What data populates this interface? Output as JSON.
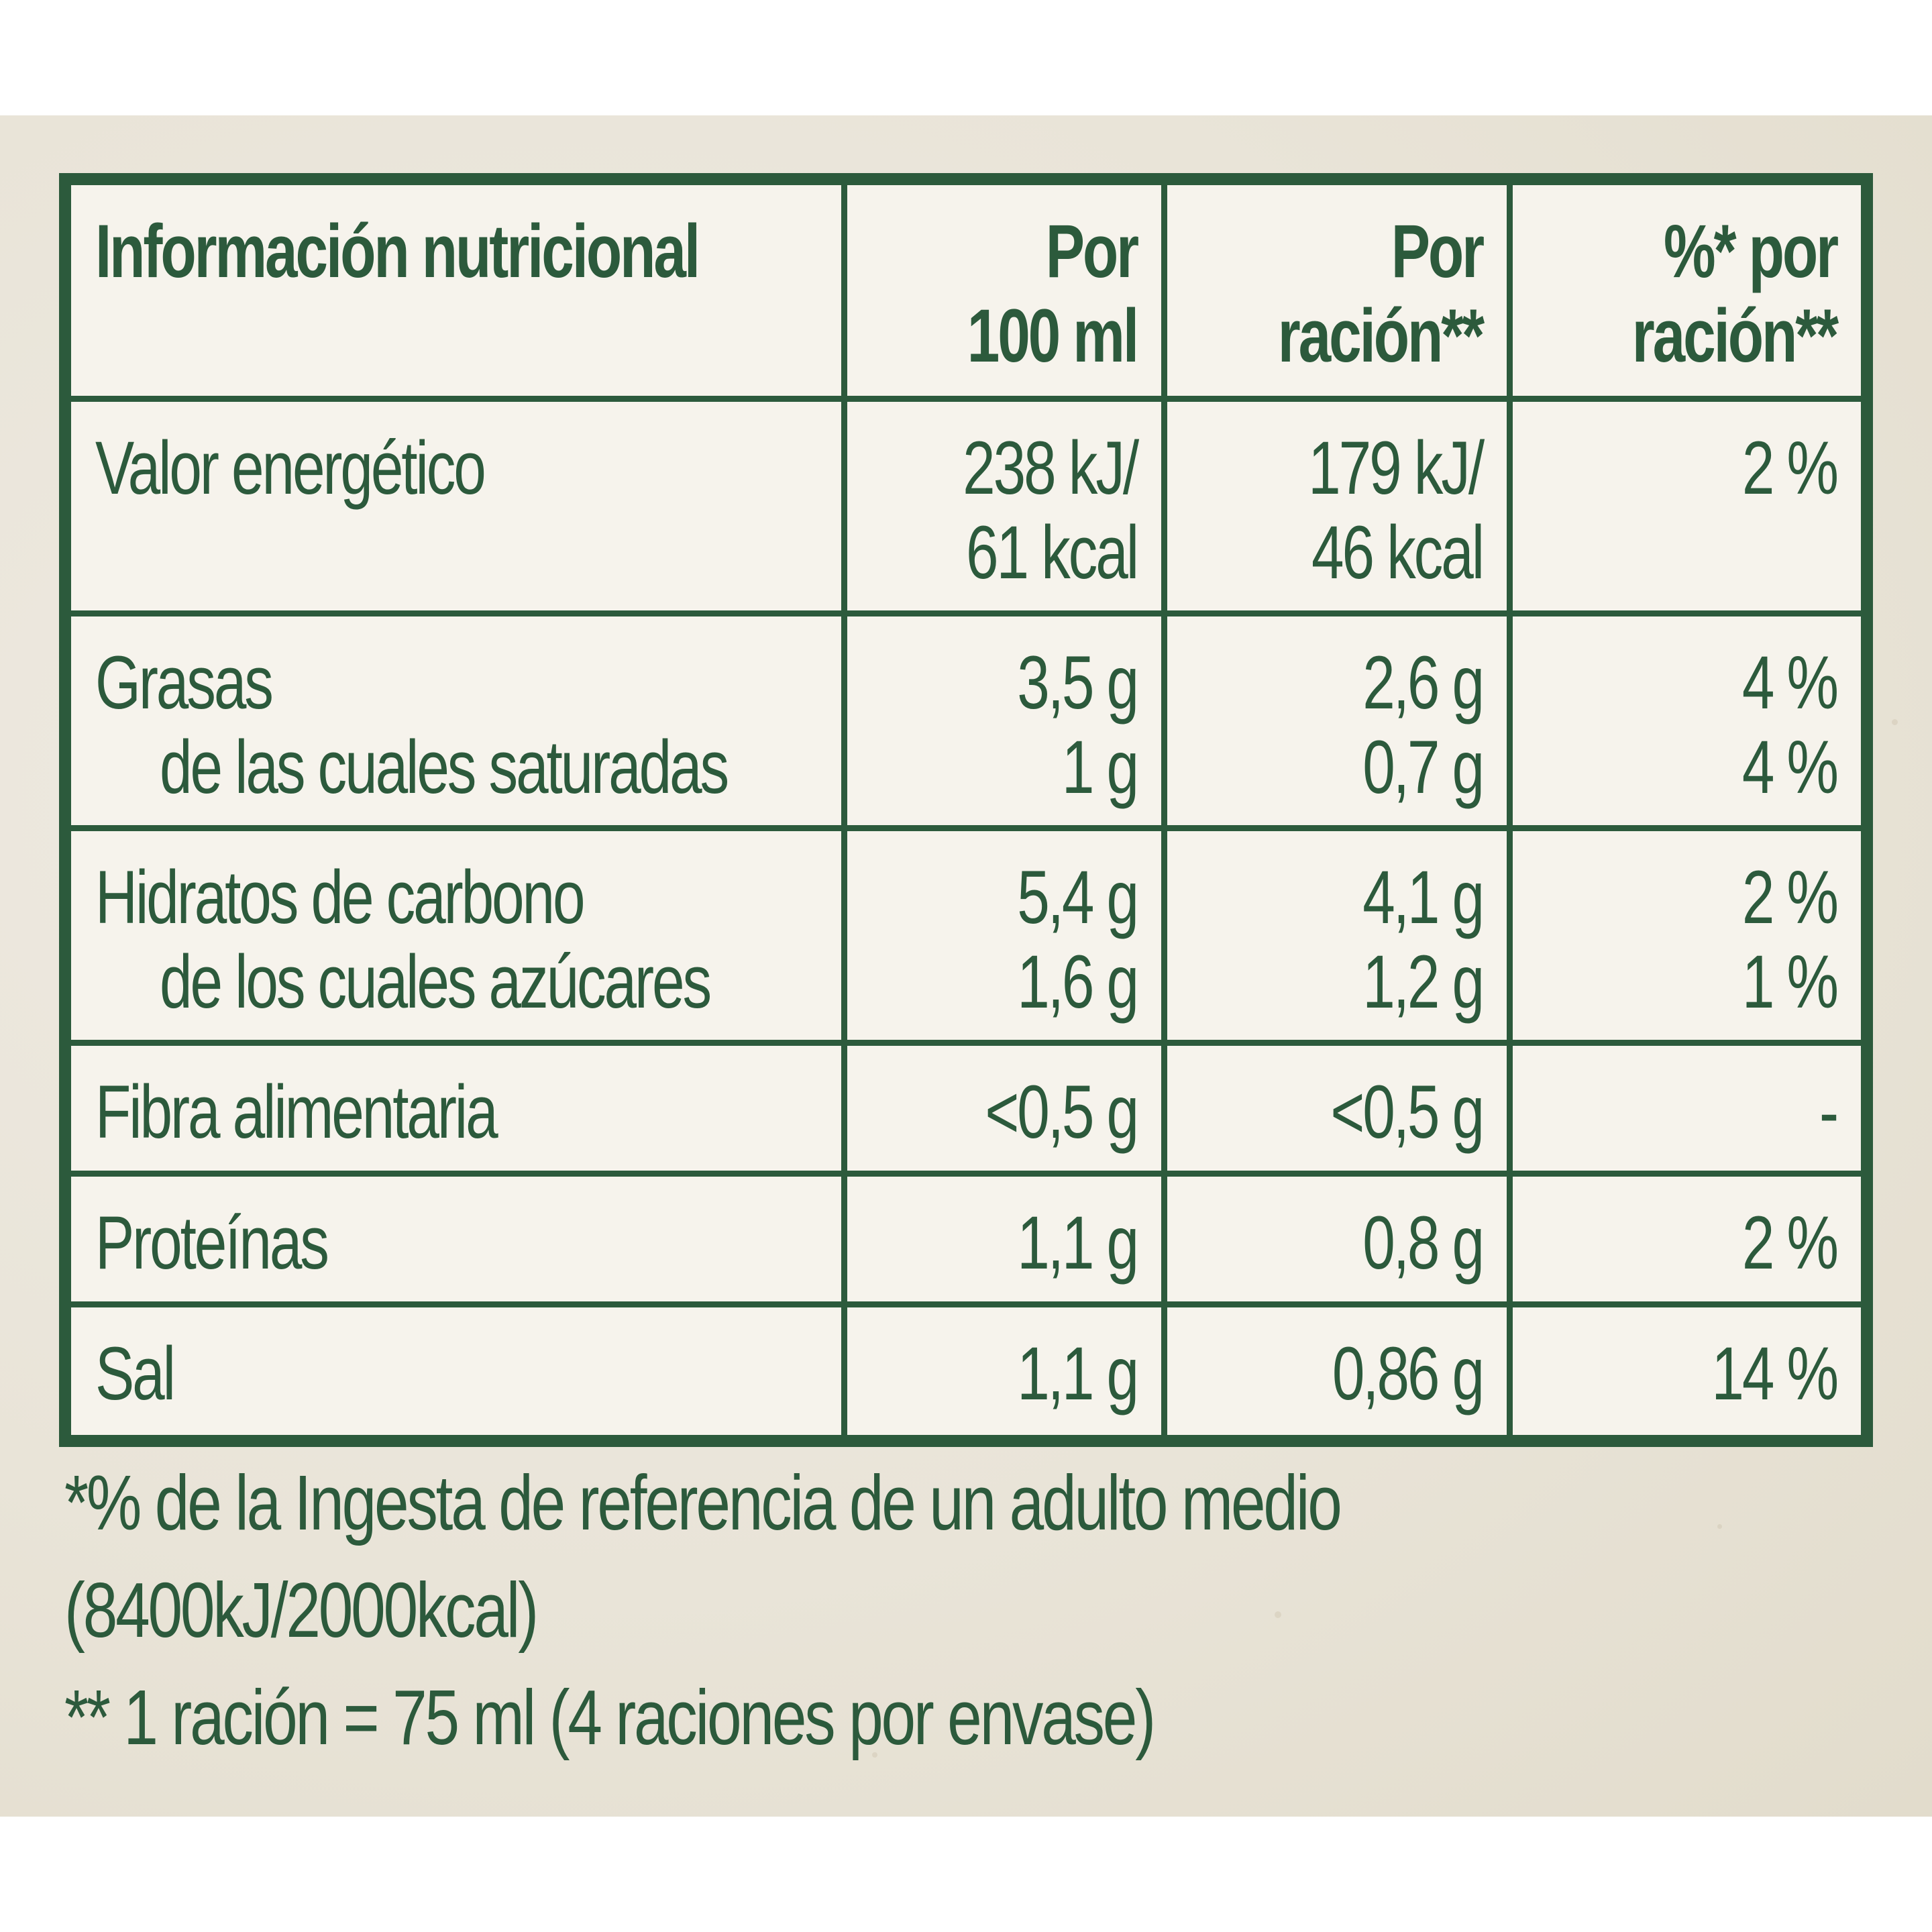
{
  "table": {
    "header": {
      "col1": "Información nutricional",
      "col2_l1": "Por",
      "col2_l2": "100 ml",
      "col3_l1": "Por",
      "col3_l2": "ración**",
      "col4_l1": "%* por",
      "col4_l2": "ración**"
    },
    "rows": [
      {
        "label": "Valor energético",
        "per100_l1": "238 kJ/",
        "per100_l2": "61 kcal",
        "perserv_l1": "179 kJ/",
        "perserv_l2": "46 kcal",
        "pct": "2 %"
      },
      {
        "label": "Grasas",
        "sublabel": "de las cuales saturadas",
        "per100": "3,5 g",
        "per100_sub": "1 g",
        "perserv": "2,6 g",
        "perserv_sub": "0,7 g",
        "pct": "4 %",
        "pct_sub": "4 %"
      },
      {
        "label": "Hidratos de carbono",
        "sublabel": "de los cuales azúcares",
        "per100": "5,4 g",
        "per100_sub": "1,6 g",
        "perserv": "4,1 g",
        "perserv_sub": "1,2 g",
        "pct": "2 %",
        "pct_sub": "1 %"
      },
      {
        "label": "Fibra alimentaria",
        "per100": "<0,5 g",
        "perserv": "<0,5 g",
        "pct": "-"
      },
      {
        "label": "Proteínas",
        "per100": "1,1 g",
        "perserv": "0,8 g",
        "pct": "2 %"
      },
      {
        "label": "Sal",
        "per100": "1,1 g",
        "perserv": "0,86 g",
        "pct": "14 %"
      }
    ]
  },
  "footnotes": {
    "line1": "*% de la Ingesta de referencia de un adulto medio",
    "line2": "(8400kJ/2000kcal)",
    "line3": "** 1 ración = 75 ml (4 raciones por envase)"
  },
  "colors": {
    "green": "#2c5a3c",
    "panel": "#f6f3ec",
    "background": "#e9e4d8"
  }
}
